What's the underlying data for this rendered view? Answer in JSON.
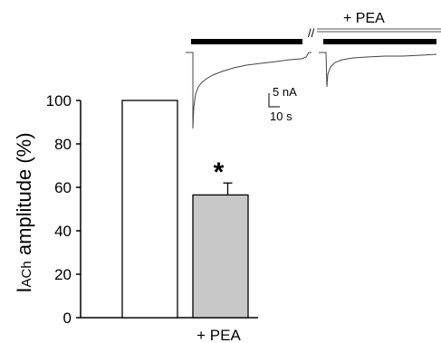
{
  "chart_data": {
    "type": "bar",
    "categories": [
      "",
      "+ PEA"
    ],
    "values": [
      100,
      56.5
    ],
    "errors": [
      0,
      5.5
    ],
    "colors": [
      "#ffffff",
      "#c8c8c8"
    ],
    "ylim": [
      0,
      100
    ],
    "yticks": [
      0,
      20,
      40,
      60,
      80,
      100
    ],
    "ylabel_main": "I",
    "ylabel_sub": "ACh",
    "ylabel_rest": " amplitude (%)",
    "significance": "*",
    "grid": false,
    "inset": {
      "pea_label": "+ PEA",
      "break_symbol": "//",
      "scale_current": "5 nA",
      "scale_time": "10 s"
    }
  }
}
